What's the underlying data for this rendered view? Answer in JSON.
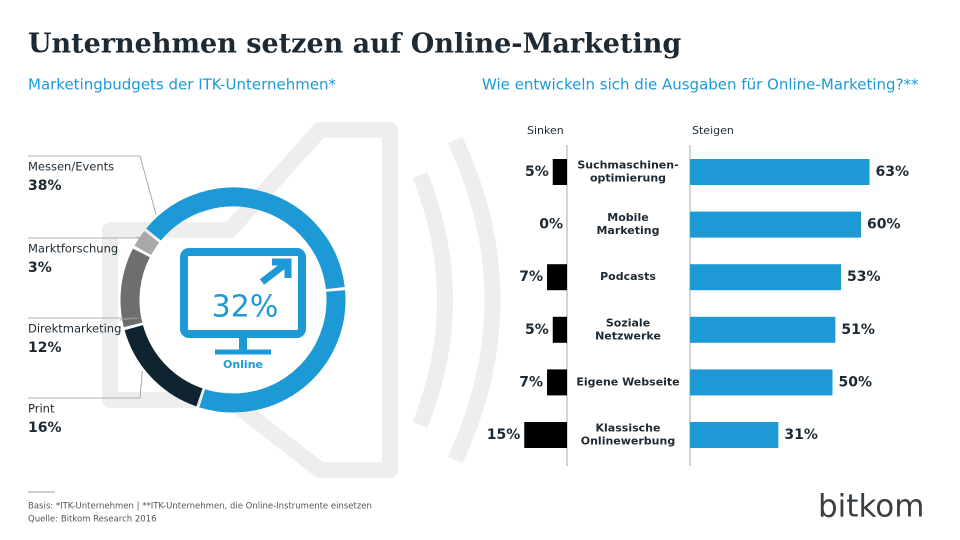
{
  "title": "Unternehmen setzen auf Online-Marketing",
  "chart_data": [
    {
      "type": "donut",
      "title": "Marketingbudgets der ITK-Unternehmen*",
      "categories": [
        "Marktforschung",
        "Messen/Events",
        "Online",
        "Print",
        "Direktmarketing"
      ],
      "values": [
        3,
        38,
        32,
        16,
        12
      ],
      "value_labels": [
        "3%",
        "38%",
        "32%",
        "16%",
        "12%"
      ],
      "colors": [
        "#a9a9a9",
        "#1d9ad6",
        "#1d9ad6",
        "#0f2430",
        "#6e6e6e"
      ]
    },
    {
      "type": "butterfly-bar",
      "title": "Wie entwickeln sich die Ausgaben für Online-Marketing?**",
      "categories": [
        "Suchmaschinen-\noptimierung",
        "Mobile\nMarketing",
        "Podcasts",
        "Soziale\nNetzwerke",
        "Eigene Webseite",
        "Klassische\nOnlinewerbung"
      ],
      "series": [
        {
          "name": "Sinken",
          "color": "#000000",
          "values": [
            5,
            0,
            7,
            5,
            7,
            15
          ],
          "value_labels": [
            "5%",
            "0%",
            "7%",
            "5%",
            "7%",
            "15%"
          ]
        },
        {
          "name": "Steigen",
          "color": "#1d9ad6",
          "values": [
            63,
            60,
            53,
            51,
            50,
            31
          ],
          "value_labels": [
            "63%",
            "60%",
            "53%",
            "51%",
            "50%",
            "31%"
          ]
        }
      ]
    }
  ],
  "footnotes": [
    "Basis: *ITK-Unternehmen | **ITK-Unternehmen, die Online-Instrumente einsetzen",
    "Quelle: Bitkom Research 2016"
  ],
  "logo": "bitkom"
}
